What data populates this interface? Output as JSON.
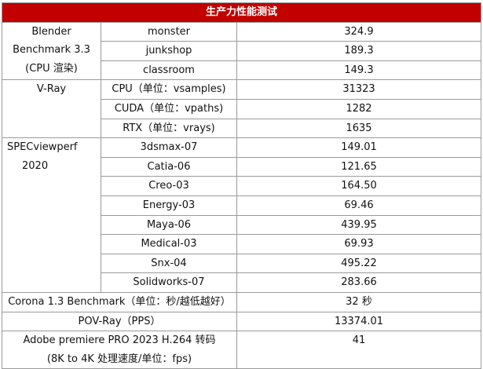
{
  "title": "生产力性能测试",
  "blender": {
    "lines": [
      "Blender",
      "Benchmark 3.3",
      "(CPU 渲染)"
    ],
    "rows": [
      {
        "item": "monster",
        "value": "324.9"
      },
      {
        "item": "junkshop",
        "value": "189.3"
      },
      {
        "item": "classroom",
        "value": "149.3"
      }
    ]
  },
  "vray": {
    "label": "V-Ray",
    "rows": [
      {
        "item": "CPU（单位：vsamples)",
        "value": "31323"
      },
      {
        "item": "CUDA（单位：vpaths)",
        "value": "1282"
      },
      {
        "item": "RTX（单位：vrays)",
        "value": "1635"
      }
    ]
  },
  "specviewperf": {
    "lines": [
      "SPECviewperf",
      "2020"
    ],
    "rows": [
      {
        "item": "3dsmax-07",
        "value": "149.01"
      },
      {
        "item": "Catia-06",
        "value": "121.65"
      },
      {
        "item": "Creo-03",
        "value": "164.50"
      },
      {
        "item": "Energy-03",
        "value": "69.46"
      },
      {
        "item": "Maya-06",
        "value": "439.95"
      },
      {
        "item": "Medical-03",
        "value": "69.93"
      },
      {
        "item": "Snx-04",
        "value": "495.22"
      },
      {
        "item": "Solidworks-07",
        "value": "283.66"
      }
    ]
  },
  "corona": {
    "label": "Corona 1.3 Benchmark（单位：秒/越低越好）",
    "value": "32 秒"
  },
  "povray": {
    "label": "POV-Ray（PPS）",
    "value": "13374.01"
  },
  "premiere": {
    "lines": [
      "Adobe premiere PRO 2023 H.264 转码",
      "(8K to 4K 处理速度/单位：fps)"
    ],
    "value": "41"
  }
}
